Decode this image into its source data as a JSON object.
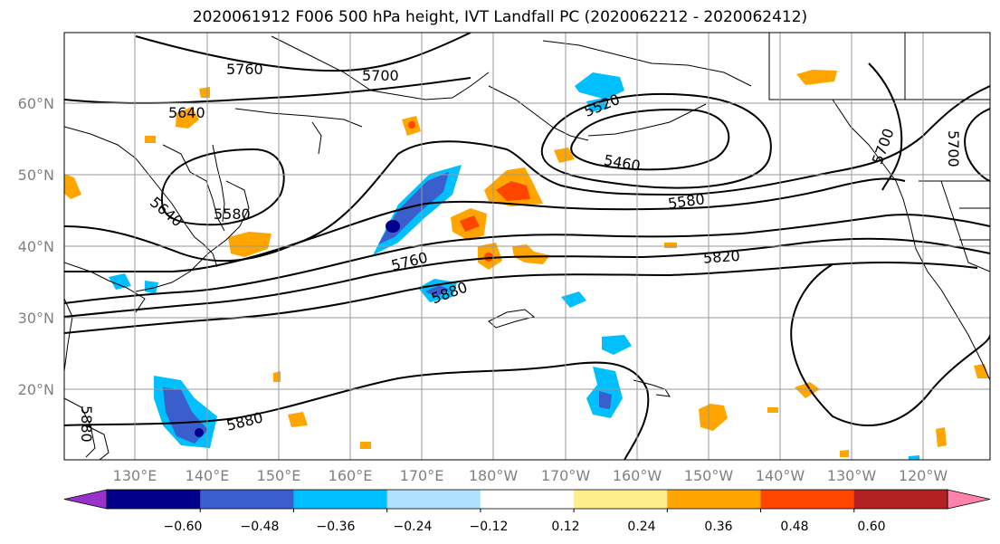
{
  "title": "2020061912 F006 500 hPa height, IVT Landfall PC (2020062212 - 2020062412)",
  "lat_ticks": [
    "60°N",
    "50°N",
    "40°N",
    "30°N",
    "20°N"
  ],
  "lon_ticks": [
    "130°E",
    "140°E",
    "150°E",
    "160°E",
    "170°E",
    "180°W",
    "170°W",
    "160°W",
    "150°W",
    "140°W",
    "130°W",
    "120°W"
  ],
  "contour_labels": [
    "5760",
    "5700",
    "5640",
    "5520",
    "5460",
    "5580",
    "5640",
    "5580",
    "5760",
    "5880",
    "5820",
    "5700",
    "5700",
    "5880",
    "5880"
  ],
  "colorbar": {
    "ticks": [
      "−0.60",
      "−0.48",
      "−0.36",
      "−0.24",
      "−0.12",
      "0.12",
      "0.24",
      "0.36",
      "0.48",
      "0.60"
    ],
    "colors": [
      "#9932cc",
      "#00008b",
      "#3a5fcd",
      "#00bfff",
      "#b0e2ff",
      "#ffffff",
      "#ffec8b",
      "#ffa500",
      "#ff4500",
      "#b22222",
      "#ff82ab"
    ]
  }
}
